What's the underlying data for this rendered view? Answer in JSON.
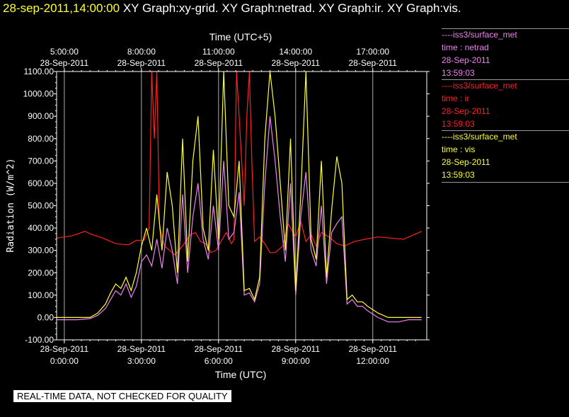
{
  "header": {
    "timestamp": "28-sep-2011,14:00:00",
    "titles": "XY Graph:xy-grid.  XY Graph:netrad.  XY Graph:ir.  XY Graph:vis."
  },
  "colors": {
    "background": "#000000",
    "axis": "#ffffff",
    "grid": "#aaaaaa",
    "netrad": "#ee82ee",
    "ir": "#ff2020",
    "vis": "#ffff33"
  },
  "legend": [
    {
      "line1": "----iss3/surface_met",
      "line2": "time : netrad",
      "line3": "28-Sep-2011",
      "line4": "13:59:03",
      "color": "#ee82ee"
    },
    {
      "line1": "----iss3/surface_met",
      "line2": "time : ir",
      "line3": "28-Sep-2011",
      "line4": "13:59:03",
      "color": "#ff2020"
    },
    {
      "line1": "----iss3/surface_met",
      "line2": "time : vis",
      "line3": "28-Sep-2011",
      "line4": "13:59:03",
      "color": "#ffff33"
    }
  ],
  "footer": {
    "quality_note": "REAL-TIME DATA, NOT CHECKED FOR QUALITY"
  },
  "chart_data": {
    "type": "line",
    "xlabel": "Time (UTC)",
    "x2label": "Time (UTC+5)",
    "ylabel": "Radiation (W/m^2)",
    "xlim": [
      -0.3,
      14.1
    ],
    "ylim": [
      -100,
      1100
    ],
    "grid": "vertical",
    "yticks": [
      -100,
      0,
      100,
      200,
      300,
      400,
      500,
      600,
      700,
      800,
      900,
      1000,
      1100
    ],
    "ytick_labels": [
      "-100.00",
      "0.00",
      "100.00",
      "200.00",
      "300.00",
      "400.00",
      "500.00",
      "600.00",
      "700.00",
      "800.00",
      "900.00",
      "1000.00",
      "1100.00"
    ],
    "xticks": [
      {
        "x": 0,
        "line1": "28-Sep-2011",
        "line2": "0:00:00"
      },
      {
        "x": 3,
        "line1": "28-Sep-2011",
        "line2": "3:00:00"
      },
      {
        "x": 6,
        "line1": "28-Sep-2011",
        "line2": "6:00:00"
      },
      {
        "x": 9,
        "line1": "28-Sep-2011",
        "line2": "9:00:00"
      },
      {
        "x": 12,
        "line1": "28-Sep-2011",
        "line2": "12:00:00"
      }
    ],
    "x2ticks": [
      {
        "x": 0,
        "line1": "5:00:00",
        "line2": "28-Sep-2011"
      },
      {
        "x": 3,
        "line1": "8:00:00",
        "line2": "28-Sep-2011"
      },
      {
        "x": 6,
        "line1": "11:00:00",
        "line2": "28-Sep-2011"
      },
      {
        "x": 9,
        "line1": "14:00:00",
        "line2": "28-Sep-2011"
      },
      {
        "x": 12,
        "line1": "17:00:00",
        "line2": "28-Sep-2011"
      }
    ],
    "series": [
      {
        "name": "ir",
        "color": "#ff2020",
        "x": [
          -0.3,
          0.3,
          0.8,
          1.1,
          1.5,
          2.0,
          2.5,
          2.8,
          3.1,
          3.3,
          3.4,
          3.5,
          3.6,
          3.7,
          3.8,
          3.9,
          4.1,
          4.3,
          4.6,
          4.9,
          5.1,
          5.3,
          5.5,
          5.7,
          5.9,
          6.1,
          6.3,
          6.5,
          6.6,
          6.7,
          6.8,
          6.9,
          7.0,
          7.1,
          7.2,
          7.3,
          7.4,
          7.6,
          7.8,
          8.0,
          8.2,
          8.5,
          8.7,
          8.9,
          9.0,
          9.2,
          9.4,
          9.6,
          9.8,
          10.0,
          10.3,
          10.6,
          10.9,
          11.3,
          11.7,
          12.2,
          12.7,
          13.2,
          13.6,
          13.9
        ],
        "y": [
          355,
          365,
          385,
          370,
          355,
          330,
          325,
          345,
          345,
          400,
          1100,
          800,
          1100,
          420,
          360,
          320,
          300,
          280,
          320,
          370,
          380,
          340,
          330,
          290,
          300,
          340,
          380,
          330,
          350,
          1100,
          900,
          700,
          500,
          900,
          1100,
          680,
          340,
          360,
          330,
          290,
          290,
          320,
          420,
          380,
          360,
          430,
          340,
          370,
          320,
          380,
          360,
          330,
          320,
          340,
          350,
          360,
          355,
          350,
          370,
          385
        ]
      },
      {
        "name": "netrad",
        "color": "#ee82ee",
        "x": [
          -0.3,
          0.5,
          1.0,
          1.3,
          1.6,
          1.8,
          2.0,
          2.2,
          2.4,
          2.6,
          2.8,
          3.0,
          3.2,
          3.4,
          3.6,
          3.8,
          4.0,
          4.2,
          4.4,
          4.6,
          4.8,
          5.0,
          5.2,
          5.4,
          5.6,
          5.8,
          6.0,
          6.2,
          6.4,
          6.6,
          6.8,
          7.0,
          7.2,
          7.4,
          7.6,
          7.8,
          8.0,
          8.2,
          8.4,
          8.6,
          8.8,
          9.0,
          9.2,
          9.4,
          9.6,
          9.8,
          10.0,
          10.2,
          10.4,
          10.6,
          10.8,
          11.0,
          11.2,
          11.4,
          11.6,
          11.8,
          12.2,
          12.6,
          13.0,
          13.4,
          13.9
        ],
        "y": [
          -10,
          -10,
          -5,
          10,
          40,
          80,
          120,
          100,
          150,
          90,
          140,
          250,
          280,
          230,
          350,
          220,
          400,
          300,
          150,
          550,
          200,
          450,
          600,
          350,
          260,
          500,
          300,
          700,
          350,
          380,
          560,
          100,
          110,
          70,
          150,
          600,
          900,
          700,
          450,
          250,
          600,
          100,
          450,
          650,
          300,
          230,
          500,
          150,
          380,
          420,
          450,
          60,
          80,
          50,
          50,
          30,
          0,
          -20,
          -20,
          -10,
          -10
        ]
      },
      {
        "name": "vis",
        "color": "#ffff33",
        "x": [
          -0.3,
          0.5,
          1.0,
          1.3,
          1.6,
          1.8,
          2.0,
          2.2,
          2.4,
          2.6,
          2.8,
          3.0,
          3.2,
          3.4,
          3.6,
          3.8,
          4.0,
          4.2,
          4.4,
          4.6,
          4.8,
          5.0,
          5.2,
          5.4,
          5.6,
          5.8,
          6.0,
          6.2,
          6.4,
          6.6,
          6.8,
          7.0,
          7.2,
          7.4,
          7.6,
          7.8,
          8.0,
          8.2,
          8.4,
          8.6,
          8.8,
          9.0,
          9.2,
          9.4,
          9.6,
          9.8,
          10.0,
          10.2,
          10.4,
          10.6,
          10.8,
          11.0,
          11.2,
          11.4,
          11.6,
          11.8,
          12.2,
          12.6,
          13.0,
          13.4,
          13.9
        ],
        "y": [
          0,
          0,
          0,
          20,
          60,
          110,
          150,
          130,
          180,
          120,
          200,
          320,
          400,
          300,
          550,
          300,
          650,
          500,
          200,
          800,
          250,
          700,
          900,
          400,
          300,
          750,
          350,
          1100,
          500,
          450,
          700,
          120,
          130,
          80,
          180,
          800,
          1100,
          900,
          600,
          300,
          800,
          120,
          550,
          1100,
          350,
          260,
          700,
          180,
          480,
          720,
          600,
          80,
          100,
          70,
          70,
          50,
          20,
          0,
          0,
          0,
          0
        ]
      }
    ]
  }
}
